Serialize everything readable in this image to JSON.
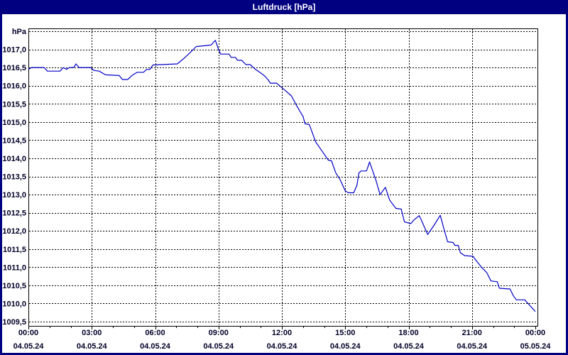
{
  "window": {
    "title": "Luftdruck [hPa]",
    "titlebar_color": "#000080",
    "border_color": "#000080",
    "content_background": "#ffffff"
  },
  "chart_data": {
    "type": "line",
    "title": "Luftdruck [hPa]",
    "unit_label": "hPa",
    "line_color": "#0000c8",
    "grid_color": "#000000",
    "frame_color": "#000000",
    "label_color": "#000028",
    "grid_style": "dashed",
    "ylim": [
      1009.5,
      1017.5
    ],
    "y_grid_step": 0.5,
    "y_tick_labels": [
      {
        "value": 1017.0,
        "label": "1017,0"
      },
      {
        "value": 1016.5,
        "label": "1016,5"
      },
      {
        "value": 1016.0,
        "label": "1016,0"
      },
      {
        "value": 1015.5,
        "label": "1015,5"
      },
      {
        "value": 1015.0,
        "label": "1015,0"
      },
      {
        "value": 1014.5,
        "label": "1014,5"
      },
      {
        "value": 1014.0,
        "label": "1014,0"
      },
      {
        "value": 1013.5,
        "label": "1013,5"
      },
      {
        "value": 1013.0,
        "label": "1013,0"
      },
      {
        "value": 1012.5,
        "label": "1012,5"
      },
      {
        "value": 1012.0,
        "label": "1012,0"
      },
      {
        "value": 1011.5,
        "label": "1011,5"
      },
      {
        "value": 1011.0,
        "label": "1011,0"
      },
      {
        "value": 1010.5,
        "label": "1010,5"
      },
      {
        "value": 1010.0,
        "label": "1010,0"
      },
      {
        "value": 1009.5,
        "label": "1009,5"
      }
    ],
    "xlim_hours": [
      0,
      24
    ],
    "x_minor_tick_every_hours": 1,
    "x_vertical_grid_hours": [
      3,
      6,
      9,
      12,
      15,
      18,
      21
    ],
    "x_tick_labels": [
      {
        "hour": 0,
        "time": "00:00",
        "date": "04.05.24"
      },
      {
        "hour": 3,
        "time": "03:00",
        "date": "04.05.24"
      },
      {
        "hour": 6,
        "time": "06:00",
        "date": "04.05.24"
      },
      {
        "hour": 9,
        "time": "09:00",
        "date": "04.05.24"
      },
      {
        "hour": 12,
        "time": "12:00",
        "date": "04.05.24"
      },
      {
        "hour": 15,
        "time": "15:00",
        "date": "04.05.24"
      },
      {
        "hour": 18,
        "time": "18:00",
        "date": "04.05.24"
      },
      {
        "hour": 21,
        "time": "21:00",
        "date": "04.05.24"
      },
      {
        "hour": 24,
        "time": "00:00",
        "date": "05.05.24"
      }
    ],
    "series": [
      {
        "name": "Luftdruck",
        "points": [
          [
            0.0,
            1016.45
          ],
          [
            0.15,
            1016.5
          ],
          [
            0.75,
            1016.5
          ],
          [
            0.9,
            1016.4
          ],
          [
            1.5,
            1016.4
          ],
          [
            1.65,
            1016.5
          ],
          [
            1.8,
            1016.45
          ],
          [
            1.95,
            1016.5
          ],
          [
            2.15,
            1016.5
          ],
          [
            2.25,
            1016.6
          ],
          [
            2.4,
            1016.5
          ],
          [
            2.95,
            1016.5
          ],
          [
            3.1,
            1016.42
          ],
          [
            3.35,
            1016.4
          ],
          [
            3.65,
            1016.3
          ],
          [
            4.3,
            1016.28
          ],
          [
            4.45,
            1016.17
          ],
          [
            4.7,
            1016.17
          ],
          [
            4.9,
            1016.28
          ],
          [
            5.15,
            1016.37
          ],
          [
            5.45,
            1016.37
          ],
          [
            5.6,
            1016.45
          ],
          [
            5.75,
            1016.45
          ],
          [
            5.9,
            1016.57
          ],
          [
            7.05,
            1016.6
          ],
          [
            7.3,
            1016.72
          ],
          [
            7.6,
            1016.88
          ],
          [
            7.95,
            1017.08
          ],
          [
            8.35,
            1017.1
          ],
          [
            8.65,
            1017.12
          ],
          [
            8.85,
            1017.25
          ],
          [
            9.0,
            1017.0
          ],
          [
            9.1,
            1016.87
          ],
          [
            9.5,
            1016.87
          ],
          [
            9.6,
            1016.78
          ],
          [
            9.8,
            1016.78
          ],
          [
            9.9,
            1016.7
          ],
          [
            10.1,
            1016.7
          ],
          [
            10.3,
            1016.58
          ],
          [
            10.5,
            1016.58
          ],
          [
            10.75,
            1016.45
          ],
          [
            11.0,
            1016.35
          ],
          [
            11.2,
            1016.26
          ],
          [
            11.35,
            1016.16
          ],
          [
            11.45,
            1016.07
          ],
          [
            11.75,
            1016.07
          ],
          [
            11.95,
            1015.97
          ],
          [
            12.2,
            1015.85
          ],
          [
            12.45,
            1015.72
          ],
          [
            12.7,
            1015.45
          ],
          [
            13.0,
            1015.15
          ],
          [
            13.1,
            1014.95
          ],
          [
            13.3,
            1014.93
          ],
          [
            13.6,
            1014.45
          ],
          [
            13.9,
            1014.2
          ],
          [
            14.2,
            1013.95
          ],
          [
            14.35,
            1013.93
          ],
          [
            14.55,
            1013.6
          ],
          [
            14.75,
            1013.42
          ],
          [
            15.0,
            1013.1
          ],
          [
            15.15,
            1013.05
          ],
          [
            15.4,
            1013.05
          ],
          [
            15.55,
            1013.25
          ],
          [
            15.65,
            1013.6
          ],
          [
            15.75,
            1013.65
          ],
          [
            16.0,
            1013.65
          ],
          [
            16.05,
            1013.72
          ],
          [
            16.15,
            1013.9
          ],
          [
            16.45,
            1013.4
          ],
          [
            16.65,
            1013.0
          ],
          [
            16.9,
            1013.2
          ],
          [
            17.1,
            1012.85
          ],
          [
            17.4,
            1012.62
          ],
          [
            17.65,
            1012.6
          ],
          [
            17.8,
            1012.25
          ],
          [
            18.1,
            1012.2
          ],
          [
            18.25,
            1012.3
          ],
          [
            18.5,
            1012.42
          ],
          [
            18.6,
            1012.3
          ],
          [
            18.9,
            1011.9
          ],
          [
            19.2,
            1012.15
          ],
          [
            19.5,
            1012.43
          ],
          [
            19.65,
            1012.1
          ],
          [
            19.85,
            1011.7
          ],
          [
            20.1,
            1011.68
          ],
          [
            20.2,
            1011.6
          ],
          [
            20.35,
            1011.6
          ],
          [
            20.45,
            1011.4
          ],
          [
            20.65,
            1011.32
          ],
          [
            21.05,
            1011.3
          ],
          [
            21.2,
            1011.18
          ],
          [
            21.45,
            1011.0
          ],
          [
            21.7,
            1010.85
          ],
          [
            21.9,
            1010.62
          ],
          [
            22.2,
            1010.6
          ],
          [
            22.3,
            1010.42
          ],
          [
            22.8,
            1010.4
          ],
          [
            22.95,
            1010.22
          ],
          [
            23.1,
            1010.1
          ],
          [
            23.5,
            1010.1
          ],
          [
            23.65,
            1010.0
          ],
          [
            24.0,
            1009.78
          ]
        ]
      }
    ]
  }
}
